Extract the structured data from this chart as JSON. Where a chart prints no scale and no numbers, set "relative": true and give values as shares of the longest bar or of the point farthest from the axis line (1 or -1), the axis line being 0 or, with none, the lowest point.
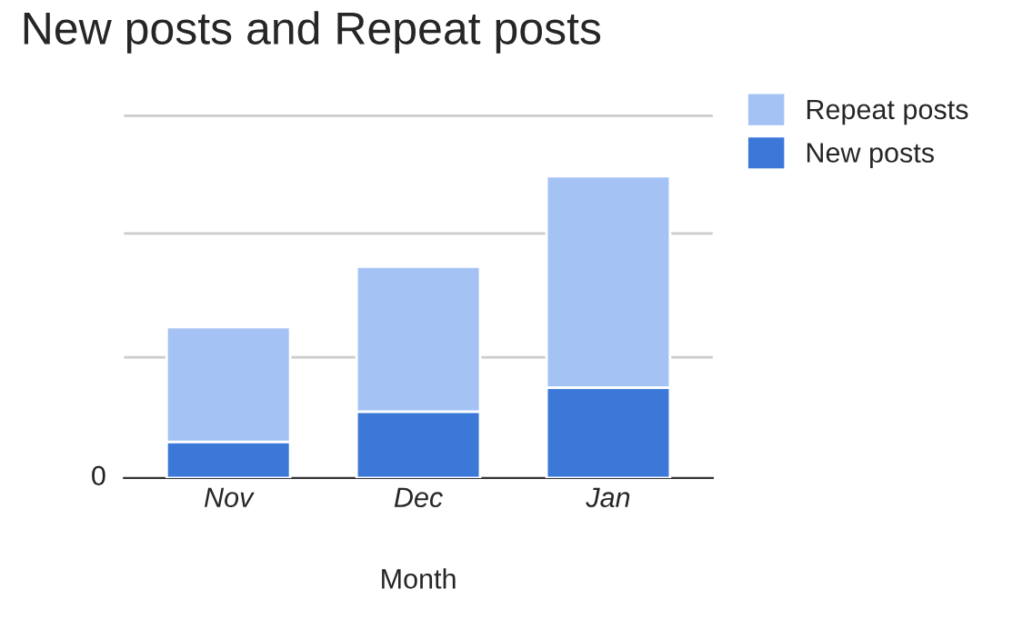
{
  "chart_data": {
    "type": "bar",
    "title": "New posts and Repeat posts",
    "xlabel": "Month",
    "categories": [
      "Nov",
      "Dec",
      "Jan"
    ],
    "series": [
      {
        "name": "New posts",
        "color": "#3c78d8",
        "values": [
          0.12,
          0.22,
          0.3
        ]
      },
      {
        "name": "Repeat posts",
        "color": "#a4c2f4",
        "values": [
          0.38,
          0.48,
          0.7
        ]
      }
    ],
    "stacked": true,
    "relative": true,
    "annotations": [
      "0"
    ],
    "ref_lines": [
      {
        "axis": "y",
        "value": 0.4,
        "color": "#cccccc"
      },
      {
        "axis": "y",
        "value": 0.81,
        "color": "#cccccc"
      },
      {
        "axis": "y",
        "value": 1.2,
        "color": "#cccccc"
      }
    ],
    "legend": "top right"
  }
}
